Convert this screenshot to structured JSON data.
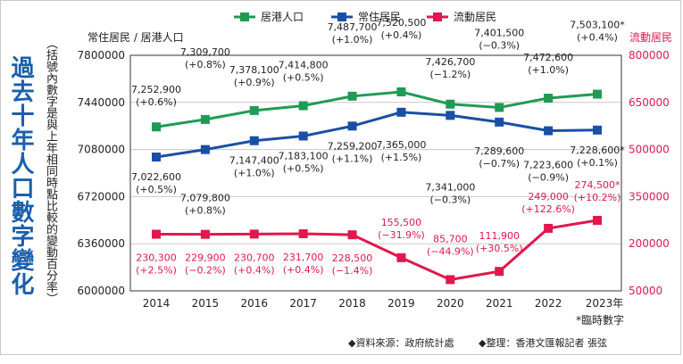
{
  "main_title": "過去十年人口數字變化",
  "sub_title": "（括號內數字是與上年相同時點比較的變動百分率）",
  "footer": {
    "source": "◆資料來源：政府統計處",
    "credit": "◆整理：香港文匯報記者 張弦"
  },
  "colors": {
    "resident": "#1f9b55",
    "usual": "#1a4fa6",
    "mobile": "#e0184d"
  },
  "chart_data": {
    "type": "line",
    "categories": [
      "2014",
      "2015",
      "2016",
      "2017",
      "2018",
      "2019",
      "2020",
      "2021",
      "2022",
      "2023年"
    ],
    "left_axis": {
      "label": "常住居民 / 居港人口",
      "ylim": [
        6000000,
        7800000
      ],
      "ticks": [
        "6000000",
        "6360000",
        "6720000",
        "7080000",
        "7440000",
        "7800000"
      ]
    },
    "right_axis": {
      "label": "流動居民",
      "ylim": [
        50000,
        800000
      ],
      "ticks": [
        "50000",
        "200000",
        "350000",
        "500000",
        "650000",
        "800000"
      ]
    },
    "note": "*臨時數字",
    "series": [
      {
        "name": "居港人口",
        "axis": "left",
        "values": [
          7252900,
          7309700,
          7378100,
          7414800,
          7487700,
          7520500,
          7426700,
          7401500,
          7472600,
          7503100
        ],
        "labels": [
          "7,252,900",
          "7,309,700",
          "7,378,100",
          "7,414,800",
          "7,487,700",
          "7,520,500",
          "7,426,700",
          "7,401,500",
          "7,472,600",
          "7,503,100*"
        ],
        "changes": [
          "(+0.6%)",
          "(+0.8%)",
          "(+0.9%)",
          "(+0.5%)",
          "(+1.0%)",
          "(+0.4%)",
          "(−1.2%)",
          "(−0.3%)",
          "(+1.0%)",
          "(+0.4%)"
        ]
      },
      {
        "name": "常住居民",
        "axis": "left",
        "values": [
          7022600,
          7079800,
          7147400,
          7183100,
          7259200,
          7365000,
          7341000,
          7289600,
          7223600,
          7228600
        ],
        "labels": [
          "7,022,600",
          "7,079,800",
          "7,147,400",
          "7,183,100",
          "7,259,200",
          "7,365,000",
          "7,341,000",
          "7,289,600",
          "7,223,600",
          "7,228,600*"
        ],
        "changes": [
          "(+0.5%)",
          "(+0.8%)",
          "(+1.0%)",
          "(+0.5%)",
          "(+1.1%)",
          "(+1.5%)",
          "(−0.3%)",
          "(−0.7%)",
          "(−0.9%)",
          "(+0.1%)"
        ]
      },
      {
        "name": "流動居民",
        "axis": "right",
        "values": [
          230300,
          229900,
          230700,
          231700,
          228500,
          155500,
          85700,
          111900,
          249000,
          274500
        ],
        "labels": [
          "230,300",
          "229,900",
          "230,700",
          "231,700",
          "228,500",
          "155,500",
          "85,700",
          "111,900",
          "249,000",
          "274,500*"
        ],
        "changes": [
          "(+2.5%)",
          "(−0.2%)",
          "(+0.4%)",
          "(+0.4%)",
          "(−1.4%)",
          "(−31.9%)",
          "(−44.9%)",
          "(+30.5%)",
          "(+122.6%)",
          "(+10.2%)"
        ]
      }
    ]
  }
}
